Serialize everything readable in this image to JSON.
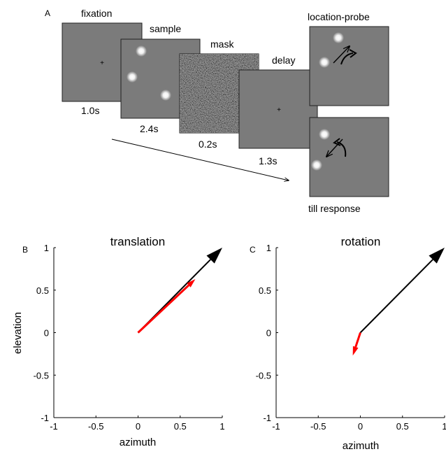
{
  "panel_a": {
    "letter": "A",
    "stages": [
      {
        "label": "fixation",
        "duration": "1.0s"
      },
      {
        "label": "sample",
        "duration": "2.4s"
      },
      {
        "label": "mask",
        "duration": "0.2s"
      },
      {
        "label": "delay",
        "duration": "1.3s"
      }
    ],
    "probe_label": "location-probe",
    "response_label": "till response",
    "colors": {
      "frame_fill": "#7b7b7b",
      "mask_fill": "#2a2a2a",
      "dot": "#ffffff"
    }
  },
  "chart_data": [
    {
      "type": "vector",
      "panel_letter": "B",
      "title": "translation",
      "xlabel": "azimuth",
      "ylabel": "elevation",
      "xlim": [
        -1,
        1
      ],
      "ylim": [
        -1,
        1
      ],
      "xticks": [
        "-1",
        "-0.5",
        "0",
        "0.5",
        "1"
      ],
      "yticks": [
        "1",
        "0.5",
        "0",
        "-0.5",
        "-1"
      ],
      "grid": false,
      "series": [
        {
          "color": "#000000",
          "x": [
            0,
            1
          ],
          "y": [
            0,
            1
          ]
        },
        {
          "color": "#ff0000",
          "x": [
            0,
            0.68
          ],
          "y": [
            0,
            0.63
          ]
        }
      ]
    },
    {
      "type": "vector",
      "panel_letter": "C",
      "title": "rotation",
      "xlabel": "azimuth",
      "ylabel": "",
      "xlim": [
        -1,
        1
      ],
      "ylim": [
        -1,
        1
      ],
      "xticks": [
        "-1",
        "-0.5",
        "0",
        "0.5",
        "1"
      ],
      "yticks": [
        "1",
        "0.5",
        "0",
        "-0.5",
        "-1"
      ],
      "grid": false,
      "series": [
        {
          "color": "#000000",
          "x": [
            0,
            1
          ],
          "y": [
            0,
            1
          ]
        },
        {
          "color": "#ff0000",
          "x": [
            0,
            -0.09
          ],
          "y": [
            0,
            -0.27
          ]
        }
      ]
    }
  ]
}
